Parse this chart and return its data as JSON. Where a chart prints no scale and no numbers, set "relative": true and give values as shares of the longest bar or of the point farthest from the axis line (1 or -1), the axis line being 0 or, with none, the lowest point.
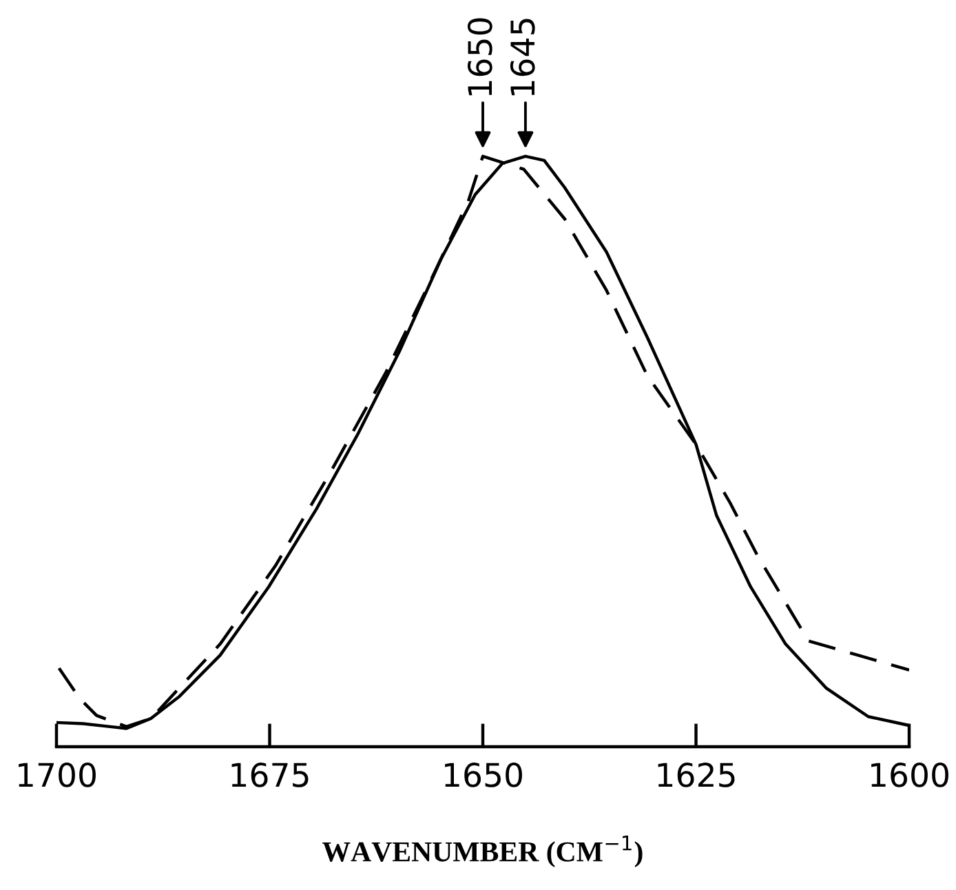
{
  "chart_data": {
    "type": "line",
    "relative": true,
    "xlabel": "WAVENUMBER (CM$^{−1}$)",
    "xlim": [
      1700,
      1600
    ],
    "xticks": [
      1700,
      1675,
      1650,
      1625,
      1600
    ],
    "grid": false,
    "legend": false,
    "series": [
      {
        "color": "#000000",
        "line_style": "solid",
        "x": [
          1700,
          1696.9,
          1693.7,
          1691.8,
          1688.9,
          1685.6,
          1680.8,
          1675.1,
          1669.5,
          1664.6,
          1659.8,
          1654.9,
          1650.9,
          1647.7,
          1645.0,
          1642.8,
          1640.4,
          1635.5,
          1630.7,
          1625.0,
          1622.6,
          1618.6,
          1614.5,
          1609.7,
          1604.8,
          1600
        ],
        "values": [
          0.041,
          0.039,
          0.034,
          0.031,
          0.048,
          0.085,
          0.155,
          0.271,
          0.403,
          0.531,
          0.669,
          0.826,
          0.935,
          0.988,
          1.0,
          0.993,
          0.947,
          0.838,
          0.693,
          0.512,
          0.392,
          0.271,
          0.174,
          0.099,
          0.051,
          0.036
        ]
      },
      {
        "color": "#000000",
        "line_style": "dashed",
        "x": [
          1699.7,
          1697.3,
          1695.3,
          1691.8,
          1688.9,
          1680.8,
          1674.3,
          1667.9,
          1661.4,
          1656.5,
          1651.7,
          1650.0,
          1645.2,
          1640.4,
          1635.5,
          1630.7,
          1625.0,
          1621.0,
          1617.8,
          1611.8,
          1606.0,
          1600
        ],
        "values": [
          0.133,
          0.082,
          0.053,
          0.034,
          0.048,
          0.174,
          0.307,
          0.464,
          0.633,
          0.778,
          0.924,
          1.0,
          0.978,
          0.894,
          0.773,
          0.628,
          0.512,
          0.413,
          0.324,
          0.179,
          0.155,
          0.13
        ]
      }
    ],
    "annotations": [
      {
        "text": "1650",
        "x": 1650,
        "y": 1.0
      },
      {
        "text": "1645",
        "x": 1645,
        "y": 1.0
      }
    ]
  }
}
